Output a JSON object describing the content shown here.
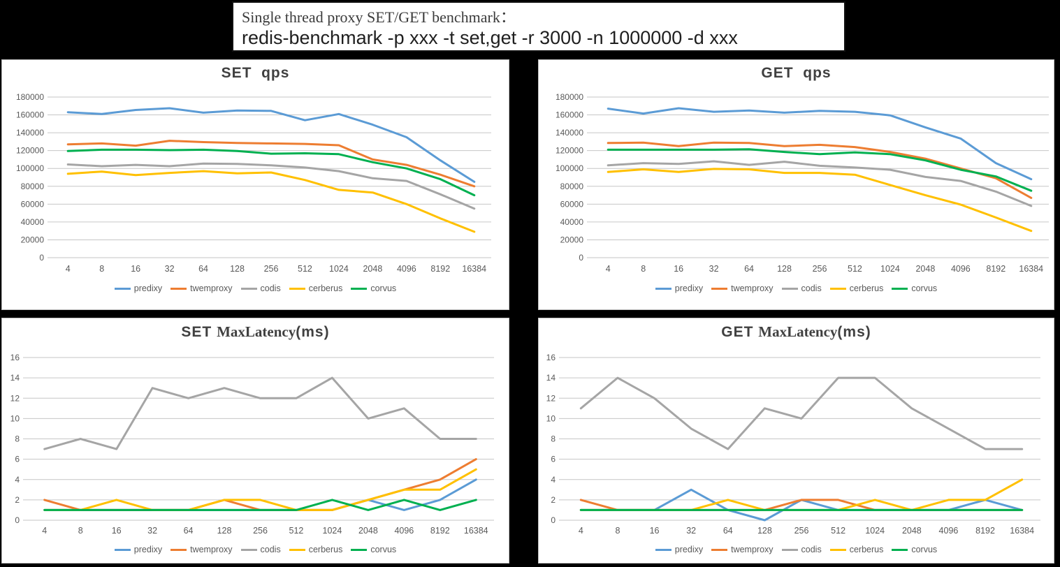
{
  "background": "#000000",
  "title_box": {
    "line1": "Single thread proxy SET/GET benchmark：",
    "line2": "redis-benchmark -p xxx -t set,get -r 3000 -n 1000000 -d xxx"
  },
  "colors": {
    "predixy": "#5B9BD5",
    "twemproxy": "#ED7D31",
    "codis": "#A5A5A5",
    "cerberus": "#FFC000",
    "corvus": "#00B050",
    "axis_text": "#595959",
    "grid_line": "#C6C6C6",
    "chart_title": "#404040"
  },
  "legend_items": [
    "predixy",
    "twemproxy",
    "codis",
    "cerberus",
    "corvus"
  ],
  "chart_data": [
    {
      "id": "set-qps",
      "type": "line",
      "title_parts": [
        {
          "text": "SET  qps",
          "serif": false
        }
      ],
      "xlabel": "",
      "ylabel": "",
      "categories": [
        "4",
        "8",
        "16",
        "32",
        "64",
        "128",
        "256",
        "512",
        "1024",
        "2048",
        "4096",
        "8192",
        "16384"
      ],
      "ylim": [
        0,
        180000
      ],
      "yticks": [
        0,
        20000,
        40000,
        60000,
        80000,
        100000,
        120000,
        140000,
        160000,
        180000
      ],
      "grid": true,
      "legend_position": "bottom",
      "series": [
        {
          "name": "predixy",
          "color": "#5B9BD5",
          "values": [
            163000,
            161000,
            165500,
            167500,
            162500,
            165000,
            164500,
            154000,
            161000,
            149000,
            135000,
            109000,
            85000
          ]
        },
        {
          "name": "twemproxy",
          "color": "#ED7D31",
          "values": [
            127000,
            128000,
            125500,
            131000,
            129500,
            128500,
            128000,
            127500,
            126000,
            110000,
            104000,
            93000,
            80000
          ]
        },
        {
          "name": "codis",
          "color": "#A5A5A5",
          "values": [
            104500,
            102500,
            104000,
            102500,
            105500,
            105000,
            103500,
            101000,
            97000,
            89000,
            86000,
            71000,
            55000
          ]
        },
        {
          "name": "cerberus",
          "color": "#FFC000",
          "values": [
            94000,
            96500,
            92500,
            95000,
            97000,
            94500,
            95500,
            87000,
            76000,
            73000,
            60000,
            44000,
            29000
          ]
        },
        {
          "name": "corvus",
          "color": "#00B050",
          "values": [
            119500,
            121000,
            121000,
            120500,
            121000,
            119500,
            116500,
            117000,
            116000,
            107000,
            100000,
            88000,
            70000
          ]
        }
      ]
    },
    {
      "id": "get-qps",
      "type": "line",
      "title_parts": [
        {
          "text": "GET  qps",
          "serif": false
        }
      ],
      "xlabel": "",
      "ylabel": "",
      "categories": [
        "4",
        "8",
        "16",
        "32",
        "64",
        "128",
        "256",
        "512",
        "1024",
        "2048",
        "4096",
        "8192",
        "16384"
      ],
      "ylim": [
        0,
        180000
      ],
      "yticks": [
        0,
        20000,
        40000,
        60000,
        80000,
        100000,
        120000,
        140000,
        160000,
        180000
      ],
      "grid": true,
      "legend_position": "bottom",
      "series": [
        {
          "name": "predixy",
          "color": "#5B9BD5",
          "values": [
            167000,
            161500,
            167500,
            163500,
            165000,
            162500,
            164500,
            163500,
            159500,
            146000,
            133500,
            106000,
            88000
          ]
        },
        {
          "name": "twemproxy",
          "color": "#ED7D31",
          "values": [
            128500,
            129000,
            125000,
            129000,
            128500,
            125000,
            126500,
            124000,
            118500,
            111000,
            100000,
            89000,
            67000
          ]
        },
        {
          "name": "codis",
          "color": "#A5A5A5",
          "values": [
            103500,
            106000,
            105000,
            108000,
            104000,
            107500,
            103000,
            101000,
            98500,
            90500,
            86000,
            74000,
            58000
          ]
        },
        {
          "name": "cerberus",
          "color": "#FFC000",
          "values": [
            96000,
            99000,
            96000,
            99500,
            99000,
            95000,
            95000,
            93000,
            81500,
            70000,
            59500,
            45000,
            30000
          ]
        },
        {
          "name": "corvus",
          "color": "#00B050",
          "values": [
            121000,
            121000,
            121000,
            121000,
            121500,
            118500,
            116000,
            118000,
            116000,
            109000,
            98500,
            91000,
            75000
          ]
        }
      ]
    },
    {
      "id": "set-maxlatency",
      "type": "line",
      "title_parts": [
        {
          "text": "SET ",
          "serif": false
        },
        {
          "text": "MaxLatency",
          "serif": true
        },
        {
          "text": "(ms)",
          "serif": false
        }
      ],
      "xlabel": "",
      "ylabel": "",
      "categories": [
        "4",
        "8",
        "16",
        "32",
        "64",
        "128",
        "256",
        "512",
        "1024",
        "2048",
        "4096",
        "8192",
        "16384"
      ],
      "ylim": [
        0,
        16
      ],
      "yticks": [
        0,
        2,
        4,
        6,
        8,
        10,
        12,
        14,
        16
      ],
      "grid": true,
      "legend_position": "bottom",
      "series": [
        {
          "name": "predixy",
          "color": "#5B9BD5",
          "values": [
            1,
            1,
            1,
            1,
            1,
            1,
            1,
            1,
            1,
            2,
            1,
            2,
            4
          ]
        },
        {
          "name": "twemproxy",
          "color": "#ED7D31",
          "values": [
            2,
            1,
            1,
            1,
            1,
            2,
            1,
            1,
            1,
            2,
            3,
            4,
            6
          ]
        },
        {
          "name": "codis",
          "color": "#A5A5A5",
          "values": [
            7,
            8,
            7,
            13,
            12,
            13,
            12,
            12,
            14,
            10,
            11,
            8,
            8
          ]
        },
        {
          "name": "cerberus",
          "color": "#FFC000",
          "values": [
            1,
            1,
            2,
            1,
            1,
            2,
            2,
            1,
            1,
            2,
            3,
            3,
            5
          ]
        },
        {
          "name": "corvus",
          "color": "#00B050",
          "values": [
            1,
            1,
            1,
            1,
            1,
            1,
            1,
            1,
            2,
            1,
            2,
            1,
            2
          ]
        }
      ]
    },
    {
      "id": "get-maxlatency",
      "type": "line",
      "title_parts": [
        {
          "text": "GET ",
          "serif": false
        },
        {
          "text": "MaxLatency",
          "serif": true
        },
        {
          "text": "(ms)",
          "serif": false
        }
      ],
      "xlabel": "",
      "ylabel": "",
      "categories": [
        "4",
        "8",
        "16",
        "32",
        "64",
        "128",
        "256",
        "512",
        "1024",
        "2048",
        "4096",
        "8192",
        "16384"
      ],
      "ylim": [
        0,
        16
      ],
      "yticks": [
        0,
        2,
        4,
        6,
        8,
        10,
        12,
        14,
        16
      ],
      "grid": true,
      "legend_position": "bottom",
      "series": [
        {
          "name": "predixy",
          "color": "#5B9BD5",
          "values": [
            1,
            1,
            1,
            3,
            1,
            0,
            2,
            1,
            1,
            1,
            1,
            2,
            1
          ]
        },
        {
          "name": "twemproxy",
          "color": "#ED7D31",
          "values": [
            2,
            1,
            1,
            1,
            1,
            1,
            2,
            2,
            1,
            1,
            1,
            1,
            1
          ]
        },
        {
          "name": "codis",
          "color": "#A5A5A5",
          "values": [
            11,
            14,
            12,
            9,
            7,
            11,
            10,
            14,
            14,
            11,
            9,
            7,
            7
          ]
        },
        {
          "name": "cerberus",
          "color": "#FFC000",
          "values": [
            1,
            1,
            1,
            1,
            2,
            1,
            1,
            1,
            2,
            1,
            2,
            2,
            4
          ]
        },
        {
          "name": "corvus",
          "color": "#00B050",
          "values": [
            1,
            1,
            1,
            1,
            1,
            1,
            1,
            1,
            1,
            1,
            1,
            1,
            1
          ]
        }
      ]
    }
  ]
}
